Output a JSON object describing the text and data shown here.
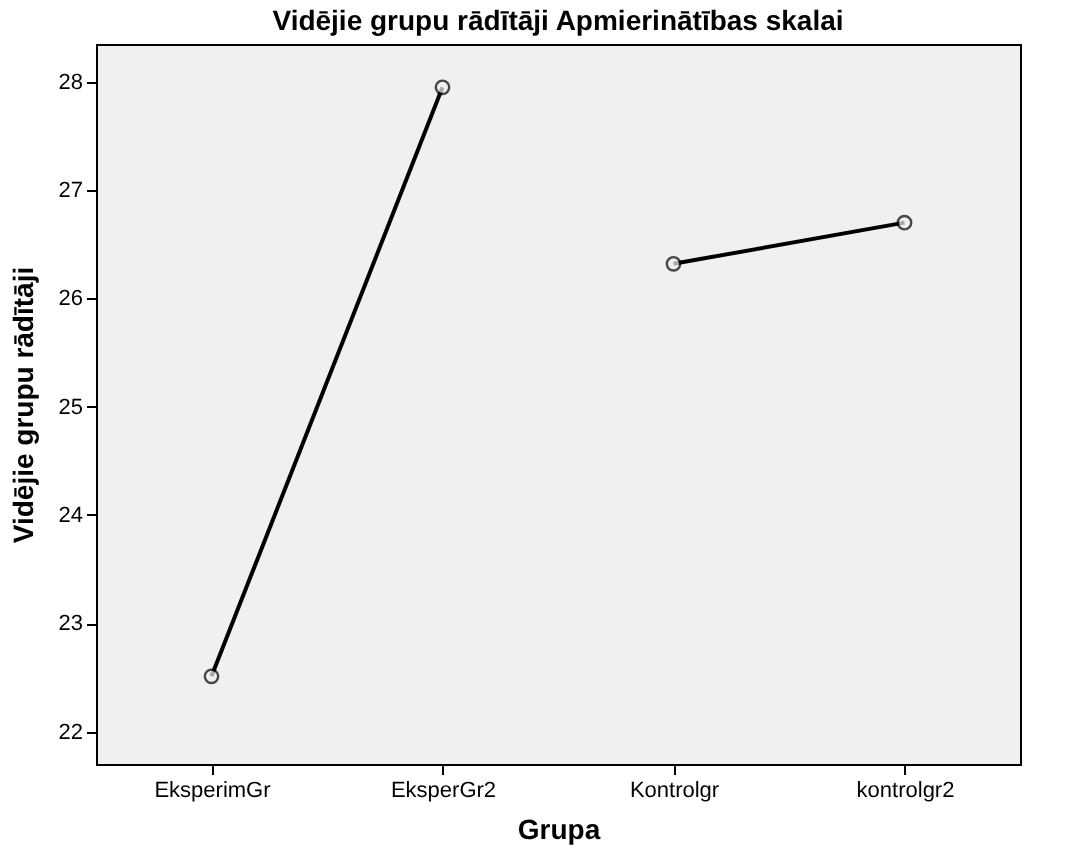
{
  "chart_data": {
    "type": "line",
    "title": "Vidējie grupu rādītāji Apmierinātības skalai",
    "xlabel": "Grupa",
    "ylabel": "Vidējie grupu rādītāji",
    "categories": [
      "EksperimGr",
      "EksperGr2",
      "Kontrolgr",
      "kontrolgr2"
    ],
    "series": [
      {
        "color": "#000000",
        "values": [
          22.51,
          27.95,
          null,
          null
        ]
      },
      {
        "color": "#000000",
        "values": [
          null,
          null,
          26.32,
          26.7
        ]
      }
    ],
    "ylim": [
      21.7,
      28.35
    ],
    "yticks": [
      22,
      23,
      24,
      25,
      26,
      27,
      28
    ],
    "grid": false,
    "legend": false,
    "marker": "circle",
    "line_style": "solid"
  }
}
